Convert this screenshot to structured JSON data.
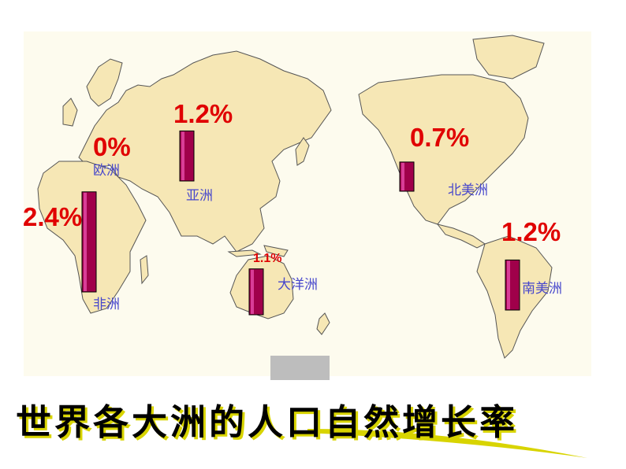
{
  "title": "世界各大洲的人口自然增长率",
  "colors": {
    "bar": "#a0004a",
    "bar_highlight": "#ff66cc",
    "label": "#e00000",
    "continent": "#4747cc",
    "land": "#f6e7b5"
  },
  "chart_data": {
    "type": "bar",
    "title": "世界各大洲的人口自然增长率",
    "categories": [
      "非洲",
      "亚洲",
      "南美洲",
      "大洋洲",
      "北美洲",
      "欧洲"
    ],
    "values": [
      2.4,
      1.2,
      1.2,
      1.1,
      0.7,
      0
    ],
    "value_labels": [
      "2.4%",
      "1.2%",
      "1.2%",
      "1.1%",
      "0.7%",
      "0%"
    ],
    "unit": "%",
    "ylim": [
      0,
      2.4
    ]
  }
}
